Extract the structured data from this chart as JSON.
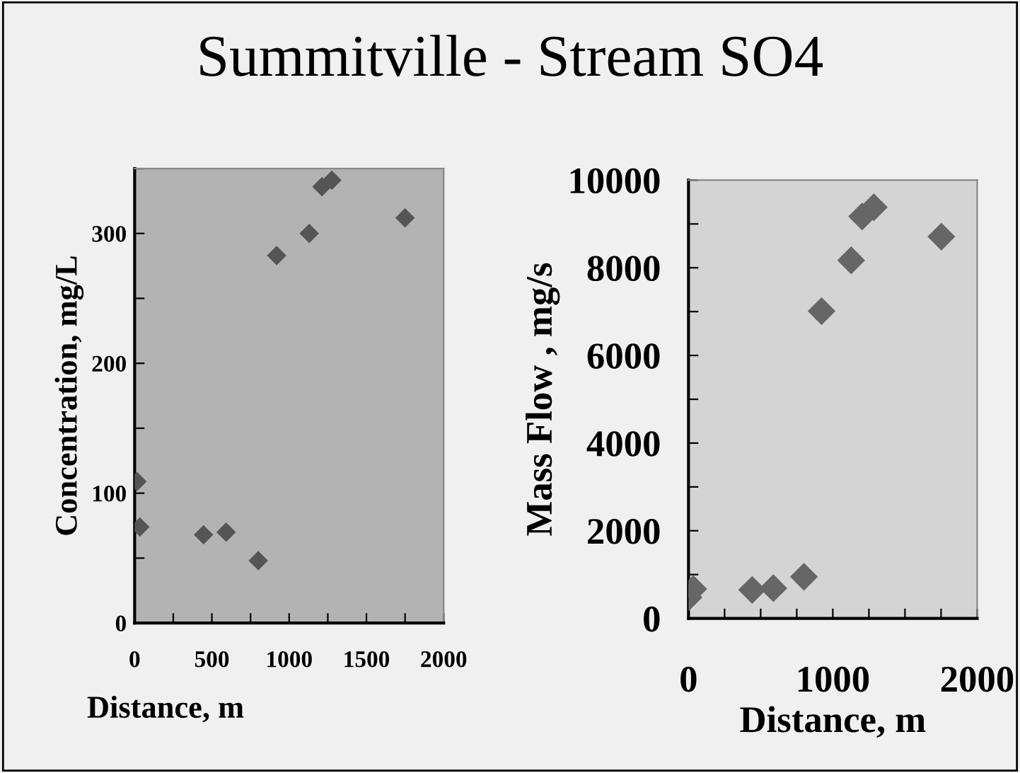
{
  "chart_data": [
    {
      "type": "scatter",
      "title": "Summitville - Stream SO4",
      "xlabel": "Distance, m",
      "ylabel": "Concentration, mg/L",
      "marker": "diamond",
      "grid": false,
      "legend": false,
      "x": [
        15,
        34,
        446,
        592,
        800,
        919,
        1130,
        1212,
        1276,
        1750
      ],
      "series": [
        {
          "color": "#555555",
          "values": [
            109,
            74,
            68,
            70,
            48,
            283,
            300,
            336,
            341,
            312
          ]
        }
      ],
      "xlim": [
        0,
        2000
      ],
      "ylim": [
        0,
        350
      ],
      "xticks": [
        0,
        {
          "value": 250,
          "label": null
        },
        500,
        {
          "value": 750,
          "label": null
        },
        1000,
        {
          "value": 1250,
          "label": null
        },
        1500,
        {
          "value": 1750,
          "label": null
        },
        2000
      ],
      "yticks": [
        0,
        {
          "value": 50,
          "label": null
        },
        100,
        {
          "value": 150,
          "label": null
        },
        200,
        {
          "value": 250,
          "label": null
        },
        300,
        {
          "value": 350,
          "label": null
        }
      ]
    },
    {
      "type": "scatter",
      "xlabel": "Distance, m",
      "ylabel": "Mass Flow , mg/s",
      "marker": "diamond",
      "grid": false,
      "legend": false,
      "x": [
        0,
        33,
        441,
        588,
        800,
        922,
        1127,
        1203,
        1284,
        1752
      ],
      "series": [
        {
          "color": "#666666",
          "values": [
            480,
            670,
            650,
            690,
            950,
            7010,
            8170,
            9170,
            9380,
            8710
          ]
        }
      ],
      "xlim": [
        0,
        2000
      ],
      "ylim": [
        0,
        10000
      ],
      "xticks": [
        0,
        {
          "value": 250,
          "label": null
        },
        {
          "value": 500,
          "label": null
        },
        {
          "value": 750,
          "label": null
        },
        1000,
        {
          "value": 1250,
          "label": null
        },
        {
          "value": 1500,
          "label": null
        },
        {
          "value": 1750,
          "label": null
        },
        2000
      ],
      "yticks": [
        0,
        {
          "value": 1000,
          "label": null
        },
        2000,
        {
          "value": 3000,
          "label": null
        },
        4000,
        {
          "value": 5000,
          "label": null
        },
        6000,
        {
          "value": 7000,
          "label": null
        },
        8000,
        {
          "value": 9000,
          "label": null
        },
        10000
      ]
    }
  ]
}
